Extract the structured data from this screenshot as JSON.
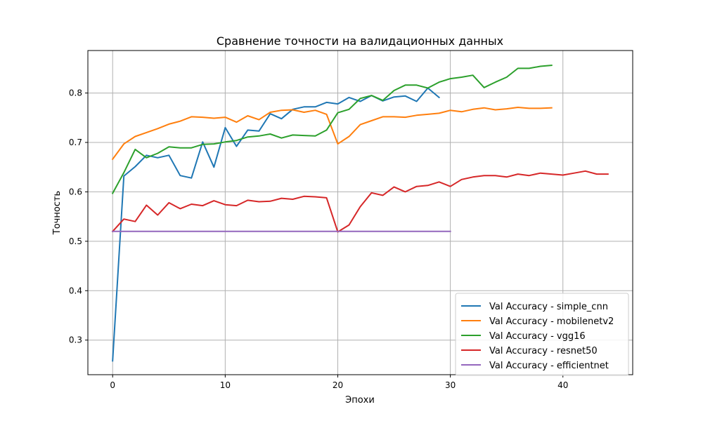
{
  "chart_data": {
    "type": "line",
    "title": "Сравнение точности на валидационных данных",
    "xlabel": "Эпохи",
    "ylabel": "Точность",
    "xlim": [
      -2.2,
      46.2
    ],
    "ylim": [
      0.23,
      0.886
    ],
    "xticks": [
      0,
      10,
      20,
      30,
      40
    ],
    "yticks": [
      0.3,
      0.4,
      0.5,
      0.6,
      0.7,
      0.8
    ],
    "grid": true,
    "legend_position": "lower-right",
    "series": [
      {
        "name": "Val Accuracy - simple_cnn",
        "color": "#1f77b4",
        "y": [
          0.258,
          0.632,
          0.651,
          0.674,
          0.669,
          0.674,
          0.633,
          0.628,
          0.701,
          0.65,
          0.73,
          0.692,
          0.725,
          0.723,
          0.758,
          0.748,
          0.767,
          0.772,
          0.772,
          0.781,
          0.778,
          0.791,
          0.783,
          0.795,
          0.784,
          0.792,
          0.794,
          0.783,
          0.81,
          0.791
        ]
      },
      {
        "name": "Val Accuracy - mobilenetv2",
        "color": "#ff7f0e",
        "y": [
          0.666,
          0.697,
          0.712,
          0.72,
          0.728,
          0.737,
          0.743,
          0.752,
          0.751,
          0.749,
          0.751,
          0.741,
          0.754,
          0.746,
          0.761,
          0.765,
          0.766,
          0.761,
          0.765,
          0.757,
          0.697,
          0.712,
          0.736,
          0.744,
          0.752,
          0.752,
          0.751,
          0.755,
          0.757,
          0.759,
          0.765,
          0.762,
          0.767,
          0.77,
          0.766,
          0.768,
          0.771,
          0.769,
          0.769,
          0.77
        ]
      },
      {
        "name": "Val Accuracy - vgg16",
        "color": "#2ca02c",
        "y": [
          0.597,
          0.639,
          0.686,
          0.669,
          0.678,
          0.691,
          0.689,
          0.689,
          0.696,
          0.697,
          0.701,
          0.704,
          0.711,
          0.713,
          0.717,
          0.709,
          0.715,
          0.714,
          0.713,
          0.725,
          0.76,
          0.767,
          0.789,
          0.795,
          0.785,
          0.805,
          0.816,
          0.816,
          0.81,
          0.822,
          0.829,
          0.832,
          0.836,
          0.811,
          0.822,
          0.832,
          0.85,
          0.85,
          0.854,
          0.856
        ]
      },
      {
        "name": "Val Accuracy - resnet50",
        "color": "#d62728",
        "y": [
          0.52,
          0.545,
          0.54,
          0.573,
          0.553,
          0.578,
          0.566,
          0.575,
          0.572,
          0.582,
          0.574,
          0.572,
          0.583,
          0.58,
          0.581,
          0.587,
          0.585,
          0.591,
          0.59,
          0.588,
          0.519,
          0.533,
          0.57,
          0.598,
          0.593,
          0.61,
          0.6,
          0.611,
          0.613,
          0.62,
          0.611,
          0.625,
          0.63,
          0.633,
          0.633,
          0.63,
          0.636,
          0.633,
          0.638,
          0.636,
          0.634,
          0.638,
          0.642,
          0.636,
          0.636
        ]
      },
      {
        "name": "Val Accuracy - efficientnet",
        "color": "#9467bd",
        "y": [
          0.52,
          0.52,
          0.52,
          0.52,
          0.52,
          0.52,
          0.52,
          0.52,
          0.52,
          0.52,
          0.52,
          0.52,
          0.52,
          0.52,
          0.52,
          0.52,
          0.52,
          0.52,
          0.52,
          0.52,
          0.52,
          0.52,
          0.52,
          0.52,
          0.52,
          0.52,
          0.52,
          0.52,
          0.52,
          0.52,
          0.52
        ]
      }
    ]
  }
}
